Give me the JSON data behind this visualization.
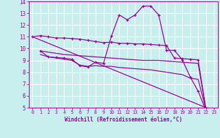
{
  "xlabel": "Windchill (Refroidissement éolien,°C)",
  "background_color": "#c8eeee",
  "grid_color": "#ffffff",
  "line_color": "#990099",
  "xlim": [
    -0.5,
    23.5
  ],
  "ylim": [
    5,
    14
  ],
  "yticks": [
    5,
    6,
    7,
    8,
    9,
    10,
    11,
    12,
    13,
    14
  ],
  "xticks": [
    0,
    1,
    2,
    3,
    4,
    5,
    6,
    7,
    8,
    9,
    10,
    11,
    12,
    13,
    14,
    15,
    16,
    17,
    18,
    19,
    20,
    21,
    22,
    23
  ],
  "series": [
    {
      "x": [
        0,
        1,
        2,
        3,
        4,
        5,
        6,
        7,
        8,
        9,
        10,
        11,
        12,
        13,
        14,
        15,
        16,
        17,
        18,
        19,
        20,
        21,
        22,
        23
      ],
      "y": [
        11.0,
        11.1,
        11.0,
        10.9,
        10.9,
        10.85,
        10.8,
        10.7,
        10.6,
        10.5,
        10.55,
        10.45,
        10.45,
        10.4,
        10.4,
        10.35,
        10.3,
        10.25,
        9.2,
        9.15,
        9.1,
        9.05,
        4.85,
        4.9
      ],
      "marker": true,
      "linestyle": "-"
    },
    {
      "x": [
        1,
        2,
        3,
        4,
        5,
        6,
        7,
        8,
        9,
        10,
        11,
        12,
        13,
        14,
        15,
        16,
        17,
        18,
        19,
        20,
        21,
        22,
        23
      ],
      "y": [
        9.8,
        9.7,
        9.6,
        9.5,
        9.45,
        9.4,
        9.35,
        9.3,
        9.25,
        9.2,
        9.15,
        9.1,
        9.05,
        9.0,
        9.0,
        9.0,
        8.95,
        8.9,
        8.85,
        8.8,
        8.75,
        4.85,
        4.9
      ],
      "marker": false,
      "linestyle": "-"
    },
    {
      "x": [
        1,
        2,
        3,
        4,
        5,
        6,
        7,
        8,
        9,
        10,
        11,
        12,
        13,
        14,
        15,
        16,
        17,
        18,
        19,
        20,
        21,
        22,
        23
      ],
      "y": [
        9.5,
        9.3,
        9.2,
        9.1,
        9.0,
        8.6,
        8.5,
        8.55,
        8.5,
        8.5,
        8.4,
        8.35,
        8.3,
        8.25,
        8.2,
        8.1,
        8.0,
        7.9,
        7.8,
        7.5,
        7.4,
        4.85,
        4.9
      ],
      "marker": false,
      "linestyle": "-"
    },
    {
      "x": [
        1,
        2,
        3,
        4,
        5,
        6,
        7,
        8,
        9,
        10,
        11,
        12,
        13,
        14,
        15,
        16,
        17,
        18,
        19,
        20,
        21,
        22,
        23
      ],
      "y": [
        9.8,
        9.3,
        9.25,
        9.2,
        9.1,
        8.55,
        8.45,
        8.85,
        8.75,
        11.05,
        12.85,
        12.45,
        12.85,
        13.6,
        13.6,
        12.85,
        9.85,
        9.85,
        9.05,
        7.6,
        6.4,
        4.75,
        4.9
      ],
      "marker": true,
      "linestyle": "-"
    },
    {
      "x": [
        0,
        22,
        23
      ],
      "y": [
        11.0,
        5.0,
        4.9
      ],
      "marker": false,
      "linestyle": "-"
    }
  ]
}
